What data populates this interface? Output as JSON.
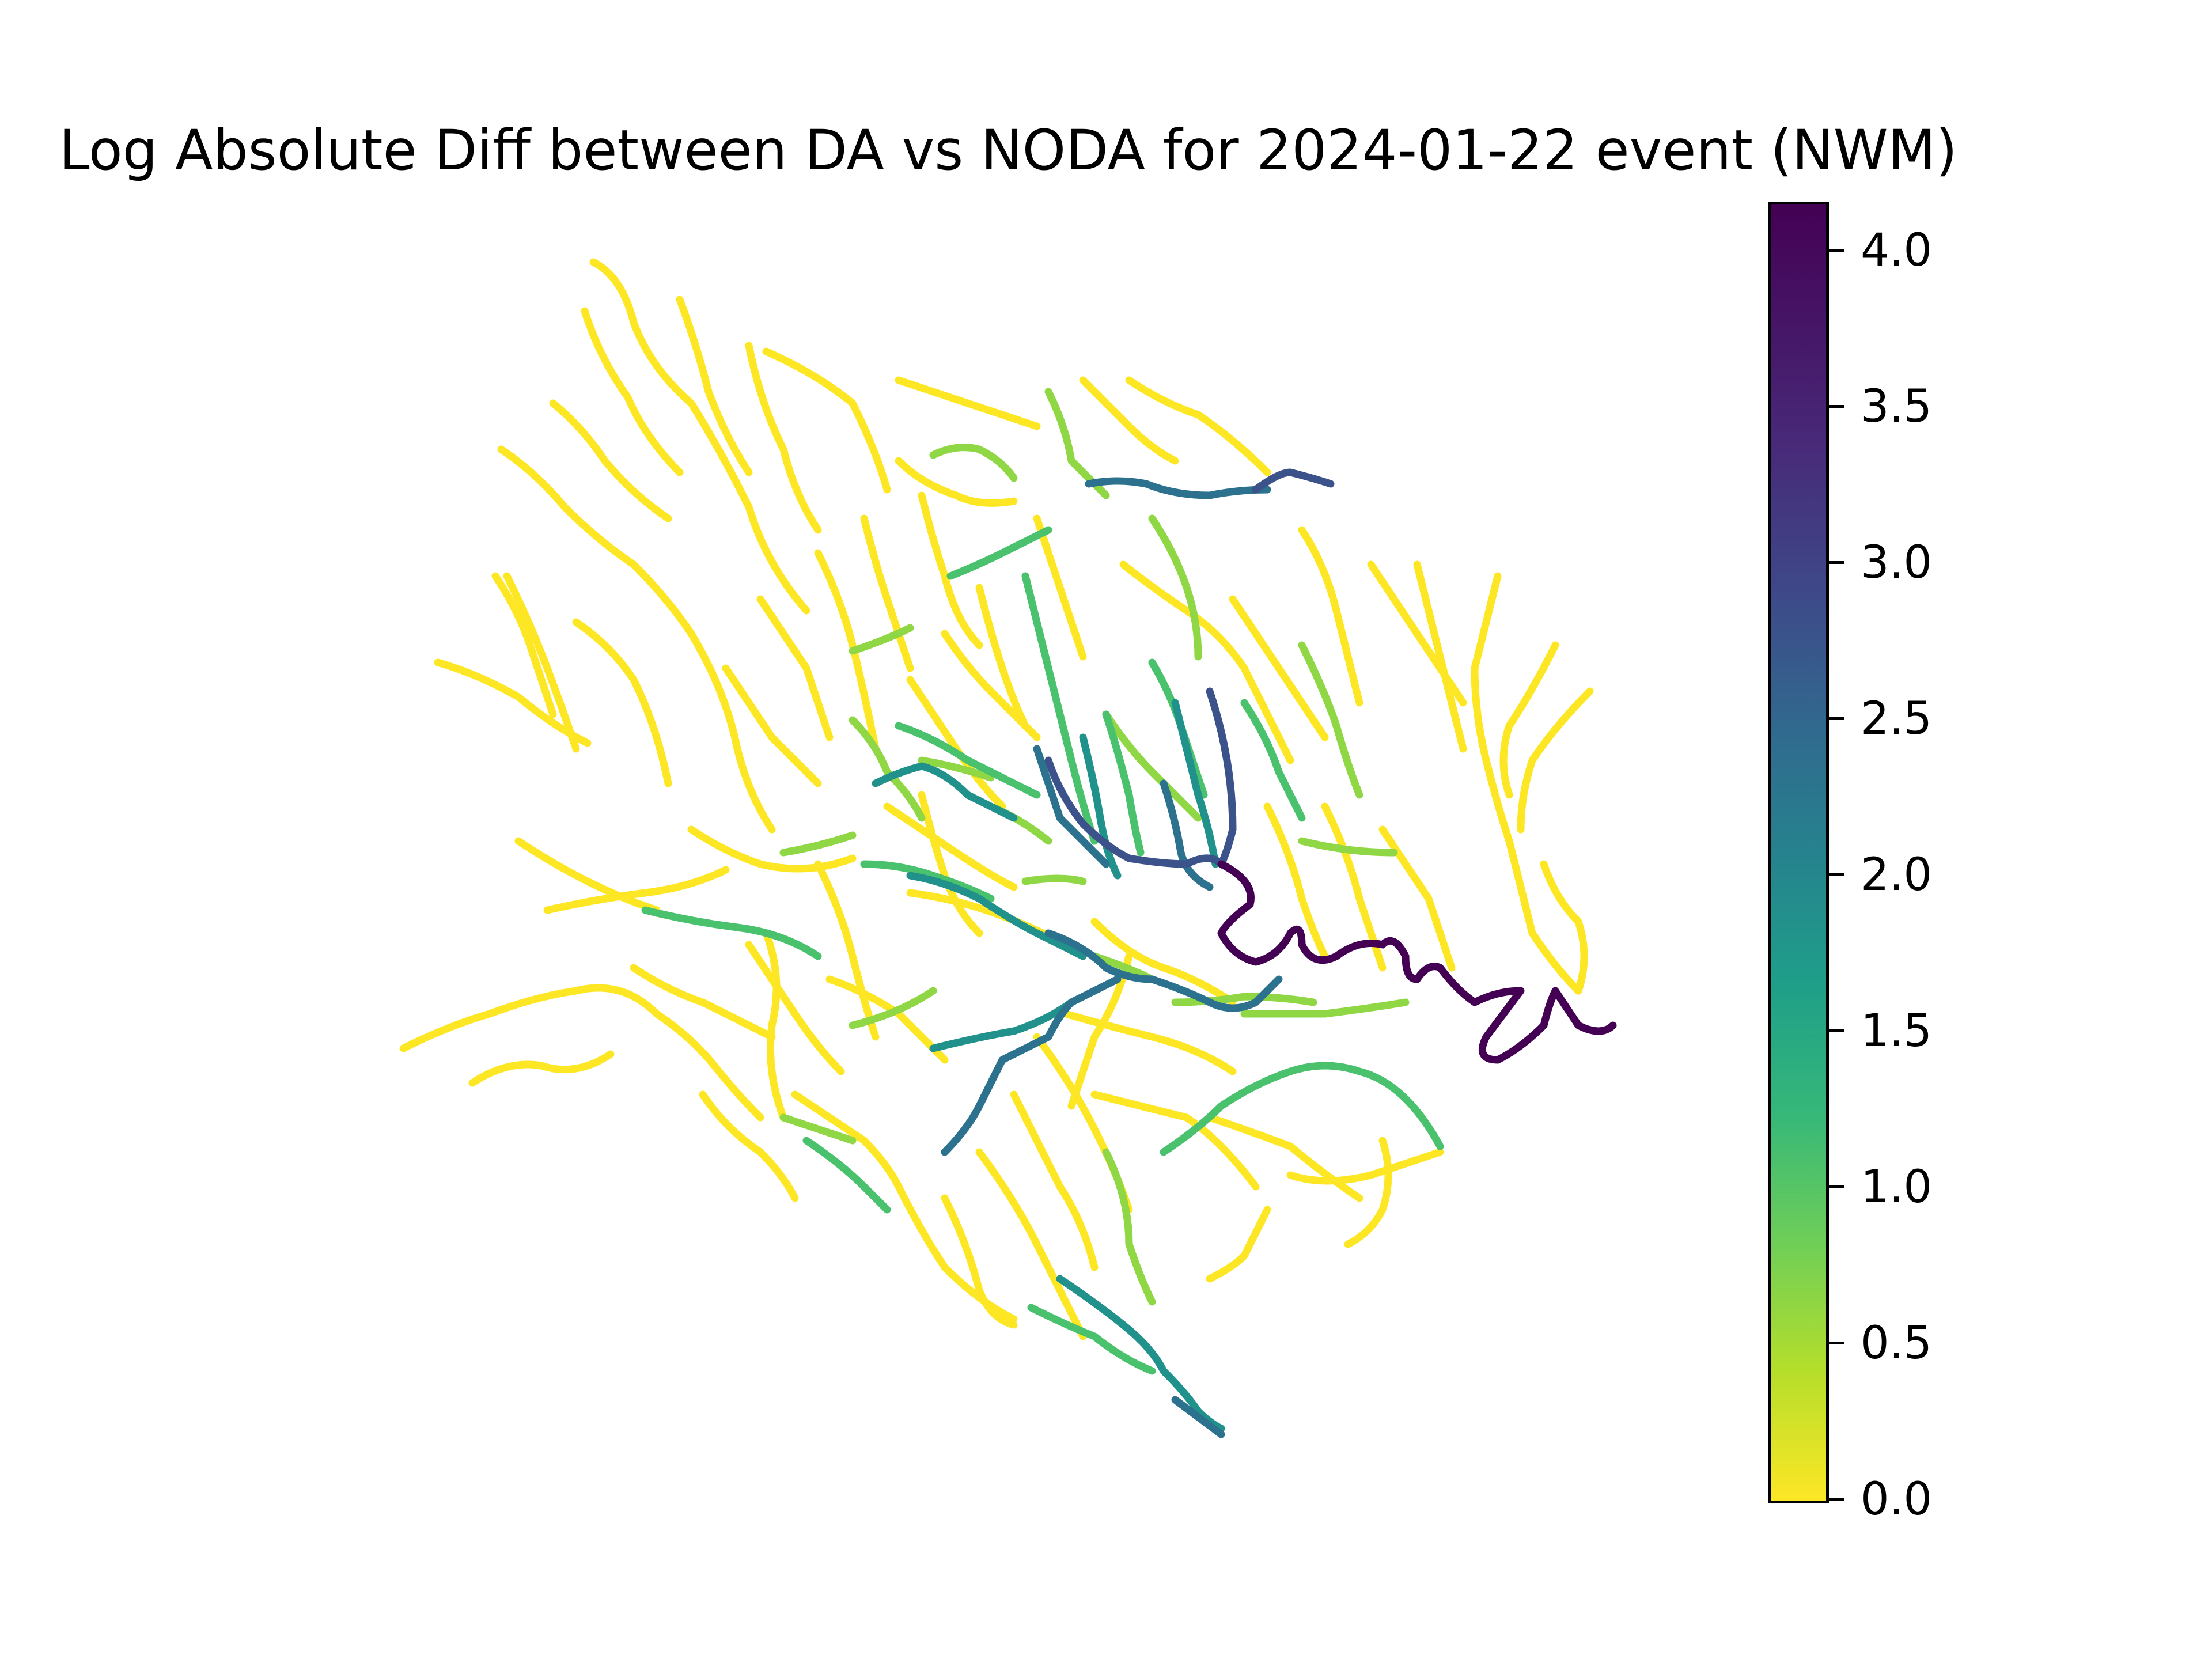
{
  "title": "Log Absolute Diff between DA vs NODA for 2024-01-22 event (NWM)",
  "colorbar": {
    "colormap": "viridis_r",
    "min": 0.0,
    "max": 4.17,
    "ticks": [
      {
        "value": 0.0,
        "label": "0.0"
      },
      {
        "value": 0.5,
        "label": "0.5"
      },
      {
        "value": 1.0,
        "label": "1.0"
      },
      {
        "value": 1.5,
        "label": "1.5"
      },
      {
        "value": 2.0,
        "label": "2.0"
      },
      {
        "value": 2.5,
        "label": "2.5"
      },
      {
        "value": 3.0,
        "label": "3.0"
      },
      {
        "value": 3.5,
        "label": "3.5"
      },
      {
        "value": 4.0,
        "label": "4.0"
      }
    ]
  },
  "colors": {
    "low": "#fde725",
    "mid": "#21918c",
    "high": "#440154"
  }
}
